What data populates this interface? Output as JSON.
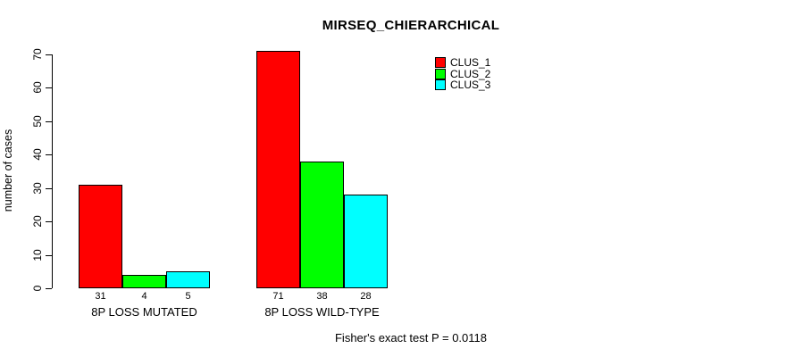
{
  "chart_data": {
    "type": "bar",
    "title": "MIRSEQ_CHIERARCHICAL",
    "xlabel": "",
    "ylabel": "number of cases",
    "categories": [
      "8P LOSS MUTATED",
      "8P LOSS WILD-TYPE"
    ],
    "series": [
      {
        "name": "CLUS_1",
        "color": "#ff0000",
        "values": [
          31,
          71
        ]
      },
      {
        "name": "CLUS_2",
        "color": "#00ff00",
        "values": [
          4,
          38
        ]
      },
      {
        "name": "CLUS_3",
        "color": "#00ffff",
        "values": [
          5,
          28
        ]
      }
    ],
    "bar_value_labels": [
      [
        "31",
        "4",
        "5"
      ],
      [
        "71",
        "38",
        "28"
      ]
    ],
    "ylim": [
      0,
      70
    ],
    "yticks": [
      0,
      10,
      20,
      30,
      40,
      50,
      60,
      70
    ],
    "grid": false,
    "legend_position": "top-right",
    "legend_entries": [
      "CLUS_1",
      "CLUS_2",
      "CLUS_3"
    ],
    "annotation": "Fisher's exact test P = 0.0118",
    "colors": {
      "bar_border": "#000000",
      "axis": "#000000",
      "text": "#000000",
      "background": "#ffffff"
    }
  }
}
